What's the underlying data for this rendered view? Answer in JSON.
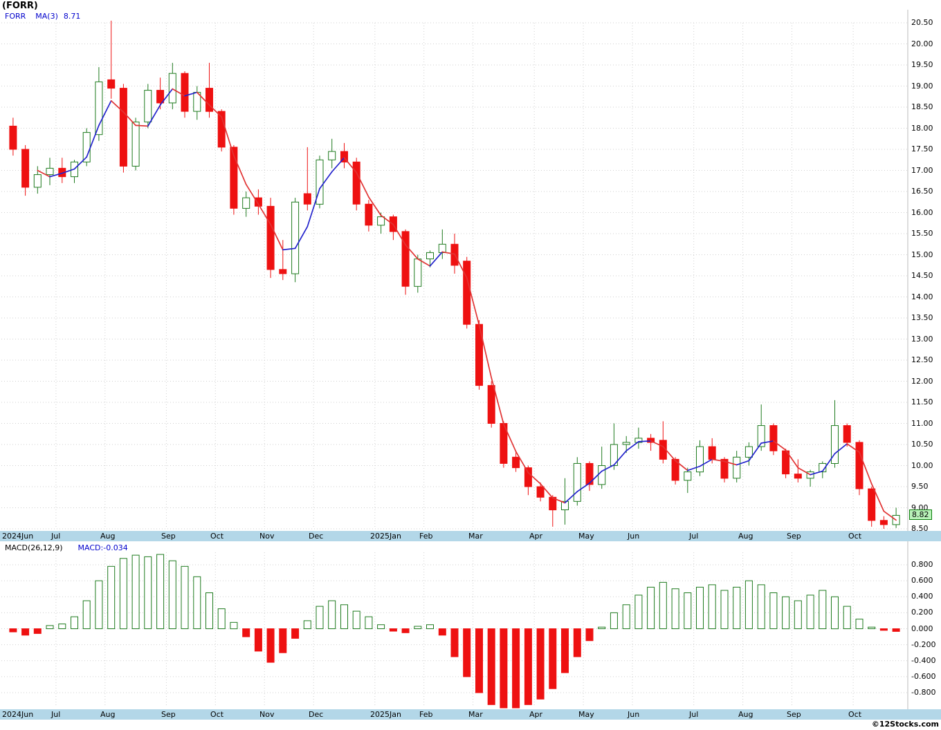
{
  "page": {
    "title": "(FORR)",
    "watermark": "©12Stocks.com"
  },
  "main_chart": {
    "legend": {
      "symbol": "FORR",
      "ma": "MA(3)",
      "ma_value": "8.71"
    },
    "last_price": 8.82,
    "last_price_tag": "8.82",
    "y_axis": {
      "min": 8.5,
      "max": 20.5,
      "step": 0.5,
      "decimals": 2
    },
    "colors": {
      "up": "#1d7a1d",
      "up_fill": "#ffffff",
      "down": "#ee1111",
      "grid": "#cfcfcf",
      "strip_bg": "#b3d7e8",
      "tag_bg": "#b9f2b9",
      "tag_border": "#0a7d0a",
      "legend_blue": "#0000cc"
    }
  },
  "macd_chart": {
    "legend": {
      "name": "MACD(26,12,9)",
      "value_label": "MACD:-0.034"
    },
    "y_axis": {
      "min": -0.8,
      "max": 0.8,
      "step": 0.2,
      "decimals": 3
    }
  },
  "x_axis": {
    "months": [
      {
        "label": "2024Jun",
        "week": 0
      },
      {
        "label": "Jul",
        "week": 4
      },
      {
        "label": "Aug",
        "week": 8
      },
      {
        "label": "Sep",
        "week": 13
      },
      {
        "label": "Oct",
        "week": 17
      },
      {
        "label": "Nov",
        "week": 21
      },
      {
        "label": "Dec",
        "week": 25
      },
      {
        "label": "2025Jan",
        "week": 30
      },
      {
        "label": "Feb",
        "week": 34
      },
      {
        "label": "Mar",
        "week": 38
      },
      {
        "label": "Apr",
        "week": 43
      },
      {
        "label": "May",
        "week": 47
      },
      {
        "label": "Jun",
        "week": 51
      },
      {
        "label": "Jul",
        "week": 56
      },
      {
        "label": "Aug",
        "week": 60
      },
      {
        "label": "Sep",
        "week": 64
      },
      {
        "label": "Oct",
        "week": 69
      }
    ]
  },
  "chart_data": [
    {
      "type": "candlestick",
      "title": "(FORR) weekly price",
      "series_name": "FORR",
      "x_unit": "week",
      "ylim": [
        8.5,
        20.5
      ],
      "last_close": 8.82,
      "overlay": {
        "name": "MA(3)",
        "period": 3,
        "last_value": 8.71,
        "color_rising": "#2222cc",
        "color_falling": "#e13333"
      },
      "ohlc": [
        [
          18.05,
          18.25,
          17.35,
          17.5
        ],
        [
          17.5,
          17.6,
          16.4,
          16.6
        ],
        [
          16.6,
          17.1,
          16.45,
          16.9
        ],
        [
          16.9,
          17.3,
          16.65,
          17.05
        ],
        [
          17.05,
          17.3,
          16.7,
          16.85
        ],
        [
          16.85,
          17.25,
          16.7,
          17.2
        ],
        [
          17.2,
          18.0,
          17.1,
          17.9
        ],
        [
          17.85,
          19.45,
          17.7,
          19.1
        ],
        [
          19.15,
          20.55,
          18.7,
          18.95
        ],
        [
          18.95,
          19.05,
          16.95,
          17.1
        ],
        [
          17.1,
          18.25,
          17.0,
          18.15
        ],
        [
          18.15,
          19.05,
          18.0,
          18.9
        ],
        [
          18.9,
          19.2,
          18.45,
          18.6
        ],
        [
          18.6,
          19.55,
          18.45,
          19.3
        ],
        [
          19.3,
          19.35,
          18.25,
          18.4
        ],
        [
          18.4,
          19.0,
          18.2,
          18.85
        ],
        [
          18.95,
          19.55,
          18.25,
          18.4
        ],
        [
          18.4,
          18.45,
          17.45,
          17.55
        ],
        [
          17.55,
          17.6,
          15.95,
          16.1
        ],
        [
          16.1,
          16.5,
          15.9,
          16.35
        ],
        [
          16.35,
          16.55,
          15.95,
          16.15
        ],
        [
          16.15,
          16.35,
          14.45,
          14.65
        ],
        [
          14.65,
          15.35,
          14.4,
          14.55
        ],
        [
          14.55,
          16.35,
          14.35,
          16.25
        ],
        [
          16.45,
          17.55,
          16.05,
          16.2
        ],
        [
          16.2,
          17.35,
          16.1,
          17.25
        ],
        [
          17.25,
          17.75,
          17.05,
          17.45
        ],
        [
          17.45,
          17.65,
          17.05,
          17.2
        ],
        [
          17.2,
          17.3,
          16.05,
          16.2
        ],
        [
          16.2,
          16.3,
          15.55,
          15.7
        ],
        [
          15.7,
          16.0,
          15.5,
          15.9
        ],
        [
          15.9,
          15.95,
          15.35,
          15.55
        ],
        [
          15.55,
          15.6,
          14.05,
          14.25
        ],
        [
          14.25,
          15.0,
          14.1,
          14.9
        ],
        [
          14.9,
          15.1,
          14.7,
          15.05
        ],
        [
          15.05,
          15.6,
          14.9,
          15.25
        ],
        [
          15.25,
          15.5,
          14.55,
          14.75
        ],
        [
          14.85,
          14.95,
          13.25,
          13.35
        ],
        [
          13.35,
          13.45,
          11.8,
          11.9
        ],
        [
          11.9,
          12.0,
          10.9,
          11.0
        ],
        [
          11.0,
          11.05,
          9.95,
          10.05
        ],
        [
          10.2,
          10.35,
          9.85,
          9.95
        ],
        [
          9.95,
          10.0,
          9.3,
          9.5
        ],
        [
          9.5,
          9.6,
          9.15,
          9.25
        ],
        [
          9.25,
          9.3,
          8.55,
          8.95
        ],
        [
          8.95,
          9.7,
          8.6,
          9.15
        ],
        [
          9.15,
          10.2,
          9.05,
          10.05
        ],
        [
          10.05,
          10.1,
          9.4,
          9.55
        ],
        [
          9.55,
          10.45,
          9.45,
          10.0
        ],
        [
          10.0,
          11.0,
          9.9,
          10.5
        ],
        [
          10.5,
          10.7,
          10.3,
          10.55
        ],
        [
          10.55,
          10.9,
          10.4,
          10.65
        ],
        [
          10.65,
          10.75,
          10.35,
          10.55
        ],
        [
          10.6,
          11.05,
          10.05,
          10.15
        ],
        [
          10.15,
          10.2,
          9.55,
          9.65
        ],
        [
          9.65,
          9.95,
          9.35,
          9.85
        ],
        [
          9.85,
          10.6,
          9.75,
          10.45
        ],
        [
          10.45,
          10.65,
          10.05,
          10.15
        ],
        [
          10.15,
          10.2,
          9.6,
          9.7
        ],
        [
          9.7,
          10.35,
          9.6,
          10.2
        ],
        [
          10.2,
          10.55,
          10.0,
          10.45
        ],
        [
          10.45,
          11.45,
          10.35,
          10.95
        ],
        [
          10.95,
          11.0,
          10.25,
          10.35
        ],
        [
          10.35,
          10.4,
          9.7,
          9.8
        ],
        [
          9.8,
          10.15,
          9.6,
          9.7
        ],
        [
          9.7,
          9.9,
          9.5,
          9.85
        ],
        [
          9.85,
          10.1,
          9.7,
          10.05
        ],
        [
          10.05,
          11.55,
          9.95,
          10.95
        ],
        [
          10.95,
          11.0,
          10.45,
          10.55
        ],
        [
          10.55,
          10.6,
          9.3,
          9.45
        ],
        [
          9.45,
          9.5,
          8.55,
          8.7
        ],
        [
          8.7,
          8.8,
          8.5,
          8.6
        ],
        [
          8.6,
          9.0,
          8.52,
          8.82
        ]
      ]
    },
    {
      "type": "bar",
      "title": "MACD(26,12,9)",
      "last_value": -0.034,
      "ylim": [
        -1.1,
        1.0
      ],
      "axis_labels_range": [
        -0.8,
        0.8
      ],
      "values": [
        -0.04,
        -0.08,
        -0.06,
        0.04,
        0.06,
        0.15,
        0.35,
        0.6,
        0.78,
        0.88,
        0.92,
        0.9,
        0.93,
        0.85,
        0.78,
        0.65,
        0.45,
        0.25,
        0.08,
        -0.1,
        -0.28,
        -0.42,
        -0.3,
        -0.12,
        0.1,
        0.28,
        0.35,
        0.3,
        0.22,
        0.15,
        0.05,
        -0.03,
        -0.05,
        0.03,
        0.05,
        -0.08,
        -0.35,
        -0.6,
        -0.8,
        -0.95,
        -1.05,
        -1.02,
        -0.95,
        -0.88,
        -0.75,
        -0.55,
        -0.35,
        -0.15,
        0.02,
        0.2,
        0.3,
        0.42,
        0.52,
        0.58,
        0.5,
        0.45,
        0.52,
        0.55,
        0.48,
        0.52,
        0.6,
        0.55,
        0.45,
        0.4,
        0.35,
        0.42,
        0.48,
        0.4,
        0.28,
        0.12,
        0.02,
        -0.02,
        -0.034
      ]
    }
  ]
}
